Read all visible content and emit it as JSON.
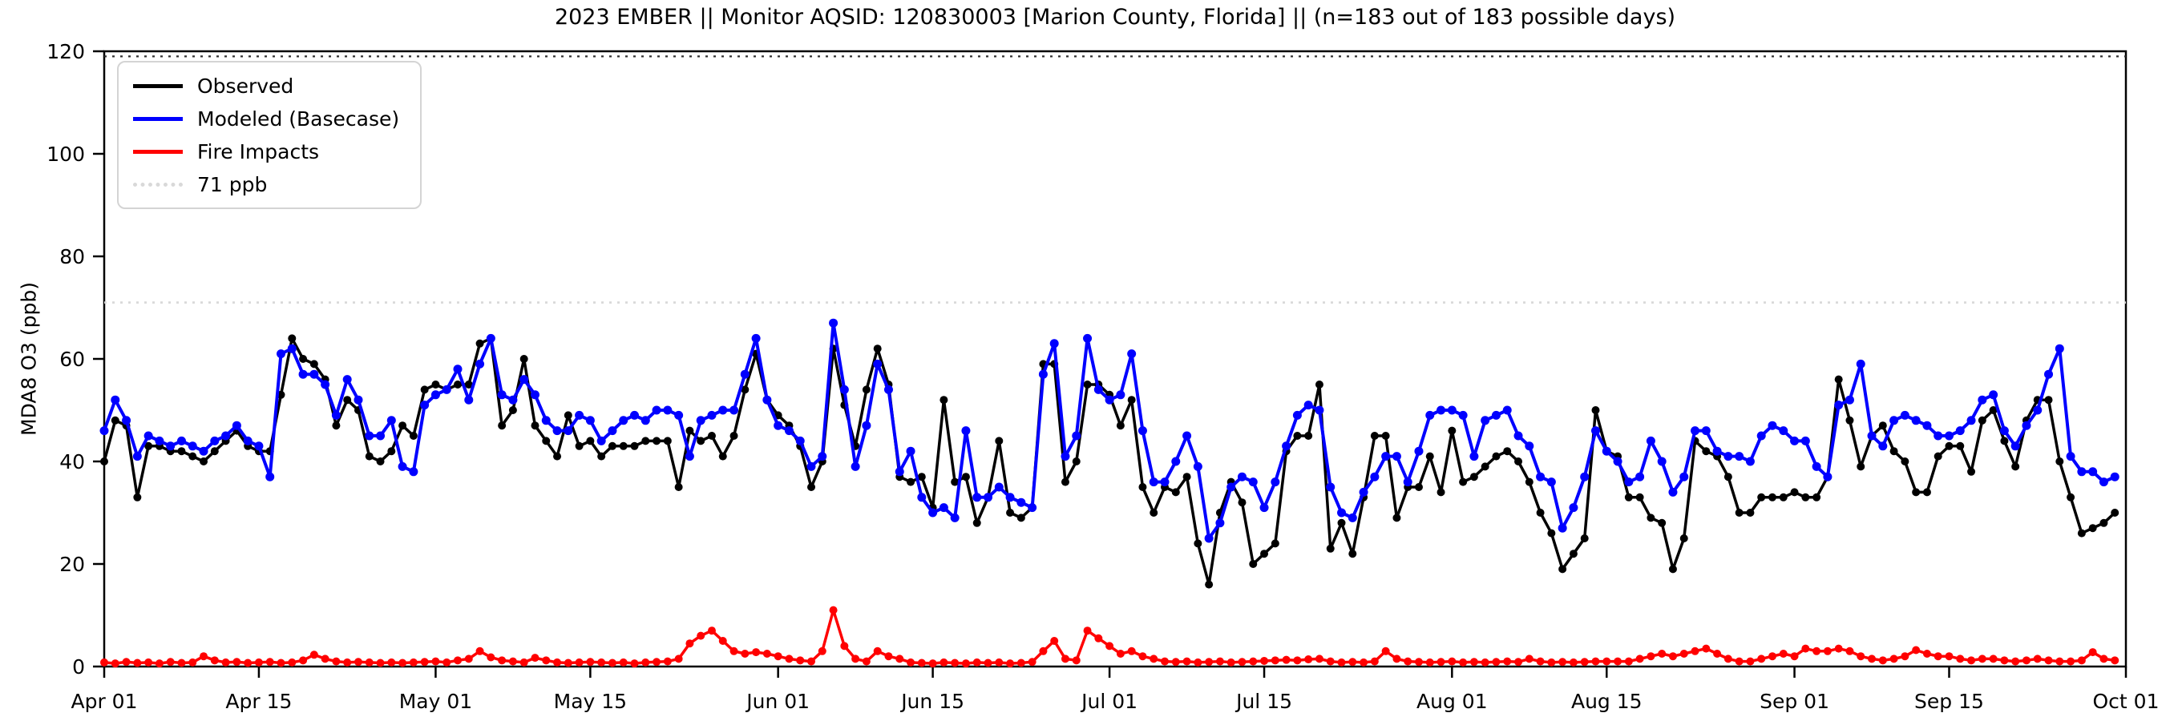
{
  "figure_title": "2023 EMBER || Monitor AQSID: 120830003 [Marion County, Florida] || (n=183 out of 183 possible days)",
  "chart_data": {
    "type": "line",
    "title": "2023 EMBER || Monitor AQSID: 120830003 [Marion County, Florida] || (n=183 out of 183 possible days)",
    "xlabel": "",
    "ylabel": "MDA8 O3 (ppb)",
    "ylim": [
      0,
      120
    ],
    "y_ticks": [
      0,
      20,
      40,
      60,
      80,
      100,
      120
    ],
    "start_date": "2023-04-01",
    "end_date": "2023-10-01",
    "n_days": 183,
    "grid": false,
    "legend_position": "upper-left",
    "x_tick_days": [
      0,
      14,
      30,
      44,
      61,
      75,
      91,
      105,
      122,
      136,
      153,
      167,
      183
    ],
    "x_tick_labels": [
      "Apr 01",
      "Apr 15",
      "May 01",
      "May 15",
      "Jun 01",
      "Jun 15",
      "Jul 01",
      "Jul 15",
      "Aug 01",
      "Aug 15",
      "Sep 01",
      "Sep 15",
      "Oct 01"
    ],
    "threshold": {
      "label": "71 ppb",
      "value": 71,
      "color": "#d9d9d9"
    },
    "upper_dotted": {
      "value": 119,
      "color": "#303030"
    },
    "series": [
      {
        "name": "Observed",
        "color": "#000000",
        "line_width": 3.5,
        "marker_radius": 5,
        "values": [
          40,
          48,
          47,
          33,
          43,
          43,
          42,
          42,
          41,
          40,
          42,
          44,
          46,
          43,
          42,
          42,
          53,
          64,
          60,
          59,
          56,
          47,
          52,
          50,
          41,
          40,
          42,
          47,
          45,
          54,
          55,
          54,
          55,
          55,
          63,
          64,
          47,
          50,
          60,
          47,
          44,
          41,
          49,
          43,
          44,
          41,
          43,
          43,
          43,
          44,
          44,
          44,
          35,
          46,
          44,
          45,
          41,
          45,
          54,
          61,
          52,
          49,
          47,
          43,
          35,
          40,
          62,
          51,
          43,
          54,
          62,
          55,
          37,
          36,
          37,
          31,
          52,
          36,
          37,
          28,
          33,
          44,
          30,
          29,
          31,
          59,
          59,
          36,
          40,
          55,
          55,
          53,
          47,
          52,
          35,
          30,
          35,
          34,
          37,
          24,
          16,
          30,
          36,
          32,
          20,
          22,
          24,
          42,
          45,
          45,
          55,
          23,
          28,
          22,
          33,
          45,
          45,
          29,
          35,
          35,
          41,
          34,
          46,
          36,
          37,
          39,
          41,
          42,
          40,
          36,
          30,
          26,
          19,
          22,
          25,
          50,
          42,
          41,
          33,
          33,
          29,
          28,
          19,
          25,
          44,
          42,
          41,
          37,
          30,
          30,
          33,
          33,
          33,
          34,
          33,
          33,
          37,
          56,
          48,
          39,
          45,
          47,
          42,
          40,
          34,
          34,
          41,
          43,
          43,
          38,
          48,
          50,
          44,
          39,
          48,
          52,
          52,
          40,
          33,
          26,
          27,
          28,
          30
        ]
      },
      {
        "name": "Modeled (Basecase)",
        "color": "#0000ff",
        "line_width": 4,
        "marker_radius": 5.5,
        "values": [
          46,
          52,
          48,
          41,
          45,
          44,
          43,
          44,
          43,
          42,
          44,
          45,
          47,
          44,
          43,
          37,
          61,
          62,
          57,
          57,
          55,
          49,
          56,
          52,
          45,
          45,
          48,
          39,
          38,
          51,
          53,
          54,
          58,
          52,
          59,
          64,
          53,
          52,
          56,
          53,
          48,
          46,
          46,
          49,
          48,
          44,
          46,
          48,
          49,
          48,
          50,
          50,
          49,
          41,
          48,
          49,
          50,
          50,
          57,
          64,
          52,
          47,
          46,
          44,
          39,
          41,
          67,
          54,
          39,
          47,
          59,
          54,
          38,
          42,
          33,
          30,
          31,
          29,
          46,
          33,
          33,
          35,
          33,
          32,
          31,
          57,
          63,
          41,
          45,
          64,
          54,
          52,
          53,
          61,
          46,
          36,
          36,
          40,
          45,
          39,
          25,
          28,
          35,
          37,
          36,
          31,
          36,
          43,
          49,
          51,
          50,
          35,
          30,
          29,
          34,
          37,
          41,
          41,
          36,
          42,
          49,
          50,
          50,
          49,
          41,
          48,
          49,
          50,
          45,
          43,
          37,
          36,
          27,
          31,
          37,
          46,
          42,
          40,
          36,
          37,
          44,
          40,
          34,
          37,
          46,
          46,
          42,
          41,
          41,
          40,
          45,
          47,
          46,
          44,
          44,
          39,
          37,
          51,
          52,
          59,
          45,
          43,
          48,
          49,
          48,
          47,
          45,
          45,
          46,
          48,
          52,
          53,
          46,
          43,
          47,
          50,
          57,
          62,
          41,
          38,
          38,
          36,
          37
        ]
      },
      {
        "name": "Fire Impacts",
        "color": "#ff0000",
        "line_width": 3.5,
        "marker_radius": 5,
        "values": [
          0.8,
          0.6,
          0.9,
          0.7,
          0.8,
          0.6,
          0.9,
          0.7,
          0.8,
          2,
          1.2,
          0.8,
          0.9,
          0.7,
          0.8,
          0.9,
          0.7,
          0.8,
          1.2,
          2.3,
          1.5,
          1,
          0.8,
          0.9,
          0.8,
          0.7,
          0.8,
          0.7,
          0.8,
          0.9,
          1,
          0.8,
          1.2,
          1.5,
          3,
          1.8,
          1.2,
          1,
          0.8,
          1.7,
          1.2,
          0.8,
          0.7,
          0.8,
          0.9,
          0.8,
          0.7,
          0.8,
          0.6,
          0.8,
          0.9,
          1,
          1.5,
          4.5,
          6,
          7,
          5,
          3,
          2.5,
          2.8,
          2.5,
          2,
          1.5,
          1.2,
          1,
          3,
          11,
          4,
          1.5,
          1,
          3,
          2,
          1.5,
          0.8,
          0.7,
          0.6,
          0.8,
          0.7,
          0.6,
          0.8,
          0.7,
          0.8,
          0.6,
          0.7,
          0.9,
          3,
          5,
          1.5,
          1.2,
          7,
          5.5,
          4,
          2.5,
          3,
          2,
          1.5,
          1,
          0.9,
          1,
          0.8,
          0.9,
          1,
          0.8,
          0.9,
          1,
          1.1,
          1.2,
          1.3,
          1.2,
          1.4,
          1.5,
          1,
          0.8,
          0.9,
          0.8,
          1,
          3,
          1.5,
          1,
          0.9,
          0.8,
          0.9,
          1,
          0.8,
          0.9,
          0.8,
          0.9,
          1,
          0.9,
          1.5,
          1,
          0.8,
          0.9,
          0.8,
          0.9,
          1,
          1,
          1,
          1,
          1.5,
          2,
          2.5,
          2,
          2.5,
          3,
          3.5,
          2.5,
          1.5,
          1,
          1,
          1.5,
          2,
          2.5,
          2,
          3.5,
          3,
          3,
          3.5,
          3,
          2,
          1.5,
          1.2,
          1.5,
          2,
          3.2,
          2.5,
          2,
          2,
          1.5,
          1.2,
          1.5,
          1.5,
          1.2,
          1,
          1.2,
          1.5,
          1.2,
          1,
          1,
          1.2,
          2.8,
          1.5,
          1.2
        ]
      }
    ],
    "legend": {
      "observed_label": "Observed",
      "modeled_label": "Modeled (Basecase)",
      "fire_label": "Fire Impacts",
      "threshold_label": "71 ppb"
    }
  }
}
